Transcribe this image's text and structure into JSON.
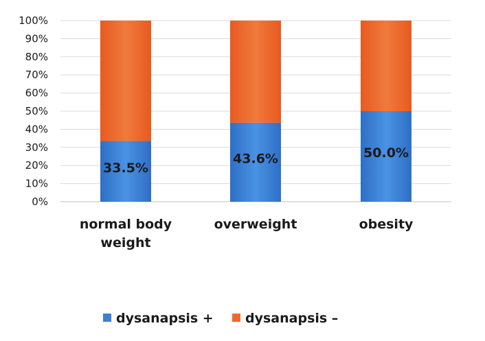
{
  "chart_data": {
    "type": "bar",
    "stacked": true,
    "percent": true,
    "categories": [
      [
        "normal body",
        "weight"
      ],
      [
        "overweight"
      ],
      [
        "obesity"
      ]
    ],
    "series": [
      {
        "name": "dysanapsis +",
        "values": [
          33.5,
          43.6,
          50.0
        ],
        "color": "#3d7fd4"
      },
      {
        "name": "dysanapsis –",
        "values": [
          66.5,
          56.4,
          50.0
        ],
        "color": "#ed6a2e"
      }
    ],
    "data_labels": [
      "33.5%",
      "43.6%",
      "50.0%"
    ],
    "y_ticks": [
      "0%",
      "10%",
      "20%",
      "30%",
      "40%",
      "50%",
      "60%",
      "70%",
      "80%",
      "90%",
      "100%"
    ],
    "ylim": [
      0,
      100
    ],
    "grid": true,
    "legend_position": "bottom"
  }
}
